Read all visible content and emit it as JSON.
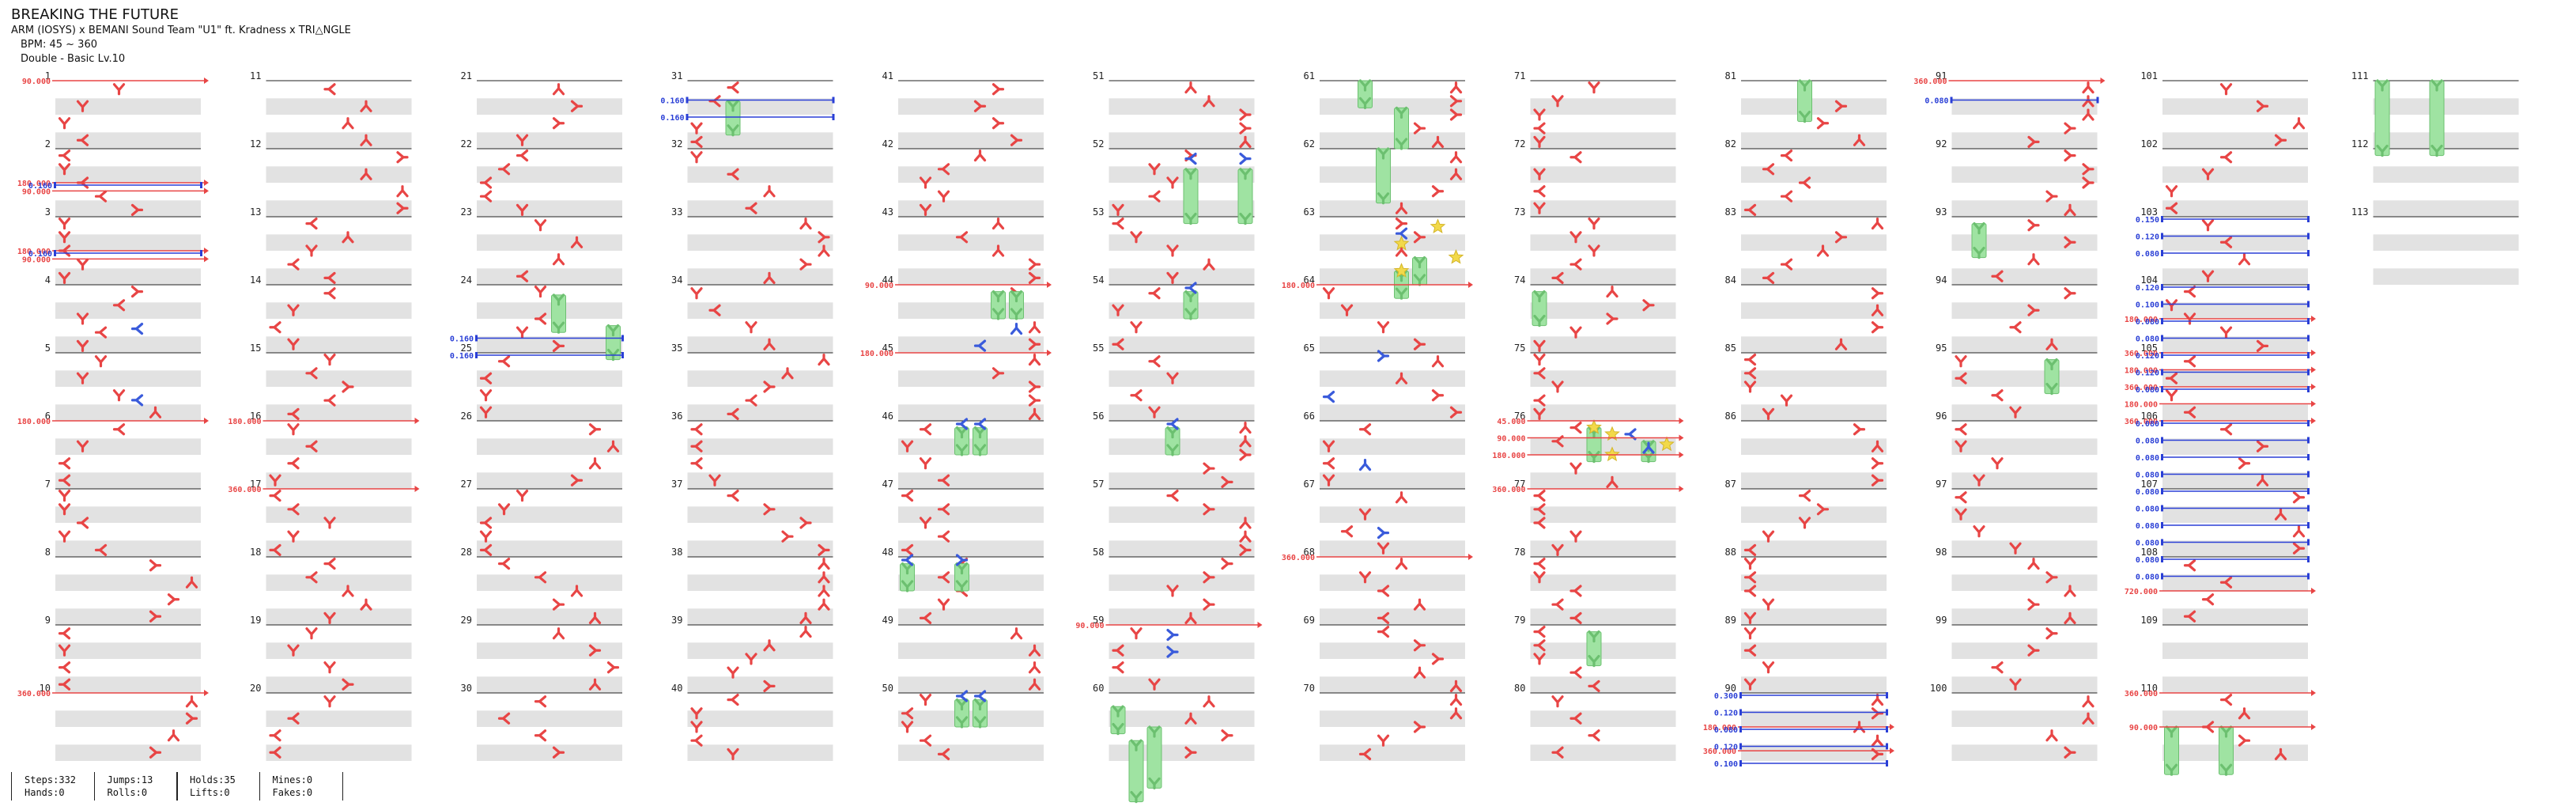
{
  "song": {
    "title": "BREAKING THE FUTURE",
    "artist": "ARM (IOSYS) x BEMANI Sound Team \"U1\" ft. Kradness x TRI△NGLE",
    "bpm_text": "BPM: 45 ~ 360",
    "difficulty_text": "Double - Basic Lv.10"
  },
  "stats": [
    {
      "lines": [
        "Steps:332",
        "Hands:0"
      ]
    },
    {
      "lines": [
        "Jumps:13",
        "Rolls:0"
      ]
    },
    {
      "lines": [
        "Holds:35",
        "Lifts:0"
      ]
    },
    {
      "lines": [
        "Mines:0",
        "Fakes:0"
      ]
    }
  ],
  "colors": {
    "tap": "#e84545",
    "blue_arrow": "#3a5bdb",
    "hold": "#9fe3a2",
    "star": "#f2d94a",
    "bpm_line": "#e84545",
    "stop_line": "#2a3fd6",
    "measure_line": "#222222",
    "band": "#e2e2e2"
  },
  "bpm_changes": [
    {
      "measure": 1,
      "pos": 0,
      "label": "90.000"
    },
    {
      "measure": 2,
      "pos": 0.5,
      "label": "180.000"
    },
    {
      "measure": 2,
      "pos": 0.62,
      "label": "90.000"
    },
    {
      "measure": 3,
      "pos": 0.5,
      "label": "180.000"
    },
    {
      "measure": 3,
      "pos": 0.62,
      "label": "90.000"
    },
    {
      "measure": 6,
      "pos": 0,
      "label": "180.000"
    },
    {
      "measure": 10,
      "pos": 0,
      "label": "360.000"
    },
    {
      "measure": 16,
      "pos": 0,
      "label": "180.000"
    },
    {
      "measure": 17,
      "pos": 0,
      "label": "360.000"
    },
    {
      "measure": 44,
      "pos": 0,
      "label": "90.000"
    },
    {
      "measure": 45,
      "pos": 0,
      "label": "180.000"
    },
    {
      "measure": 59,
      "pos": 0,
      "label": "90.000"
    },
    {
      "measure": 64,
      "pos": 0,
      "label": "180.000"
    },
    {
      "measure": 68,
      "pos": 0,
      "label": "360.000"
    },
    {
      "measure": 76,
      "pos": 0,
      "label": "45.000"
    },
    {
      "measure": 76,
      "pos": 0.25,
      "label": "90.000"
    },
    {
      "measure": 76,
      "pos": 0.5,
      "label": "180.000"
    },
    {
      "measure": 77,
      "pos": 0,
      "label": "360.000"
    },
    {
      "measure": 90,
      "pos": 0.5,
      "label": "180.000"
    },
    {
      "measure": 90,
      "pos": 0.85,
      "label": "360.000"
    },
    {
      "measure": 91,
      "pos": 0,
      "label": "360.000"
    },
    {
      "measure": 104,
      "pos": 0.5,
      "label": "180.000"
    },
    {
      "measure": 105,
      "pos": 0,
      "label": "360.000"
    },
    {
      "measure": 105,
      "pos": 0.25,
      "label": "180.000"
    },
    {
      "measure": 105,
      "pos": 0.5,
      "label": "360.000"
    },
    {
      "measure": 105,
      "pos": 0.75,
      "label": "180.000"
    },
    {
      "measure": 106,
      "pos": 0,
      "label": "360.000"
    },
    {
      "measure": 108,
      "pos": 0.5,
      "label": "720.000"
    },
    {
      "measure": 110,
      "pos": 0,
      "label": "360.000"
    },
    {
      "measure": 110,
      "pos": 0.5,
      "label": "90.000"
    }
  ],
  "stops": [
    {
      "measure": 2,
      "pos": 0.5,
      "label": "0.160"
    },
    {
      "measure": 3,
      "pos": 0.5,
      "label": "0.160"
    },
    {
      "measure": 24,
      "pos": 0.75,
      "label": "0.160"
    },
    {
      "measure": 24,
      "pos": 1.0,
      "label": "0.160"
    },
    {
      "measure": 31,
      "pos": 0.25,
      "label": "0.160"
    },
    {
      "measure": 31,
      "pos": 0.5,
      "label": "0.160"
    },
    {
      "measure": 89,
      "pos": 1.0,
      "label": "0.300"
    },
    {
      "measure": 90,
      "pos": 0.25,
      "label": "0.120"
    },
    {
      "measure": 90,
      "pos": 0.5,
      "label": "0.080"
    },
    {
      "measure": 90,
      "pos": 0.75,
      "label": "0.120"
    },
    {
      "measure": 90,
      "pos": 1.0,
      "label": "0.100"
    },
    {
      "measure": 91,
      "pos": 0.25,
      "label": "0.080"
    },
    {
      "measure": 103,
      "pos": 0,
      "label": "0.150"
    },
    {
      "measure": 103,
      "pos": 0.25,
      "label": "0.120"
    },
    {
      "measure": 103,
      "pos": 0.5,
      "label": "0.080"
    },
    {
      "measure": 104,
      "pos": 0,
      "label": "0.120"
    },
    {
      "measure": 104,
      "pos": 0.25,
      "label": "0.100"
    },
    {
      "measure": 104,
      "pos": 0.5,
      "label": "0.080"
    },
    {
      "measure": 104,
      "pos": 0.75,
      "label": "0.080"
    },
    {
      "measure": 105,
      "pos": 0,
      "label": "0.120"
    },
    {
      "measure": 105,
      "pos": 0.25,
      "label": "0.120"
    },
    {
      "measure": 105,
      "pos": 0.5,
      "label": "0.080"
    },
    {
      "measure": 106,
      "pos": 0,
      "label": "0.080"
    },
    {
      "measure": 106,
      "pos": 0.25,
      "label": "0.080"
    },
    {
      "measure": 106,
      "pos": 0.5,
      "label": "0.080"
    },
    {
      "measure": 106,
      "pos": 0.75,
      "label": "0.080"
    },
    {
      "measure": 107,
      "pos": 0,
      "label": "0.080"
    },
    {
      "measure": 107,
      "pos": 0.25,
      "label": "0.080"
    },
    {
      "measure": 107,
      "pos": 0.5,
      "label": "0.080"
    },
    {
      "measure": 107,
      "pos": 0.75,
      "label": "0.080"
    },
    {
      "measure": 108,
      "pos": 0,
      "label": "0.080"
    },
    {
      "measure": 108,
      "pos": 0.25,
      "label": "0.080"
    }
  ],
  "holds": [
    {
      "measure": 24,
      "pos": 0.15,
      "len": 0.55,
      "lane": 4
    },
    {
      "measure": 24,
      "pos": 0.6,
      "len": 0.5,
      "lane": 7
    },
    {
      "measure": 31,
      "pos": 0.3,
      "len": 0.5,
      "lane": 2
    },
    {
      "measure": 44,
      "pos": 0.1,
      "len": 0.4,
      "lane": 5
    },
    {
      "measure": 44,
      "pos": 0.1,
      "len": 0.4,
      "lane": 6
    },
    {
      "measure": 46,
      "pos": 0.1,
      "len": 0.4,
      "lane": 3
    },
    {
      "measure": 46,
      "pos": 0.1,
      "len": 0.4,
      "lane": 4
    },
    {
      "measure": 48,
      "pos": 0.1,
      "len": 0.4,
      "lane": 0
    },
    {
      "measure": 48,
      "pos": 0.1,
      "len": 0.4,
      "lane": 3
    },
    {
      "measure": 50,
      "pos": 0.1,
      "len": 0.4,
      "lane": 3
    },
    {
      "measure": 50,
      "pos": 0.1,
      "len": 0.4,
      "lane": 4
    },
    {
      "measure": 52,
      "pos": 0.3,
      "len": 0.8,
      "lane": 4
    },
    {
      "measure": 52,
      "pos": 0.3,
      "len": 0.8,
      "lane": 7
    },
    {
      "measure": 54,
      "pos": 0.1,
      "len": 0.4,
      "lane": 4
    },
    {
      "measure": 56,
      "pos": 0.1,
      "len": 0.4,
      "lane": 3
    },
    {
      "measure": 60,
      "pos": 0.2,
      "len": 0.4,
      "lane": 0
    },
    {
      "measure": 60,
      "pos": 0.5,
      "len": 0.9,
      "lane": 2
    },
    {
      "measure": 60,
      "pos": 0.7,
      "len": 0.9,
      "lane": 1
    },
    {
      "measure": 61,
      "pos": 0,
      "len": 0.4,
      "lane": 2
    },
    {
      "measure": 61,
      "pos": 0.4,
      "len": 0.6,
      "lane": 4
    },
    {
      "measure": 62,
      "pos": 0,
      "len": 0.8,
      "lane": 3
    },
    {
      "measure": 63,
      "pos": 0.6,
      "len": 0.4,
      "lane": 5
    },
    {
      "measure": 63,
      "pos": 0.8,
      "len": 0.4,
      "lane": 4
    },
    {
      "measure": 74,
      "pos": 0.1,
      "len": 0.5,
      "lane": 0
    },
    {
      "measure": 76,
      "pos": 0.1,
      "len": 0.5,
      "lane": 3
    },
    {
      "measure": 76,
      "pos": 0.3,
      "len": 0.3,
      "lane": 6
    },
    {
      "measure": 79,
      "pos": 0.1,
      "len": 0.5,
      "lane": 3
    },
    {
      "measure": 81,
      "pos": 0,
      "len": 0.6,
      "lane": 3
    },
    {
      "measure": 93,
      "pos": 0.1,
      "len": 0.5,
      "lane": 1
    },
    {
      "measure": 95,
      "pos": 0.1,
      "len": 0.5,
      "lane": 5
    },
    {
      "measure": 110,
      "pos": 0.5,
      "len": 0.7,
      "lane": 0
    },
    {
      "measure": 110,
      "pos": 0.5,
      "len": 0.7,
      "lane": 3
    },
    {
      "measure": 111,
      "pos": 0,
      "len": 1.1,
      "lane": 0
    },
    {
      "measure": 111,
      "pos": 0,
      "len": 1.1,
      "lane": 3
    }
  ],
  "stars": [
    {
      "measure": 63,
      "pos": 0.1,
      "lane": 6
    },
    {
      "measure": 63,
      "pos": 0.35,
      "lane": 4
    },
    {
      "measure": 63,
      "pos": 0.55,
      "lane": 7
    },
    {
      "measure": 63,
      "pos": 0.75,
      "lane": 4
    },
    {
      "measure": 76,
      "pos": 0.05,
      "lane": 3
    },
    {
      "measure": 76,
      "pos": 0.15,
      "lane": 4
    },
    {
      "measure": 76,
      "pos": 0.3,
      "lane": 7
    },
    {
      "measure": 76,
      "pos": 0.45,
      "lane": 4
    }
  ],
  "blue_taps": [
    {
      "measure": 4,
      "pos": 0.6,
      "lane": 4,
      "dir": "L"
    },
    {
      "measure": 5,
      "pos": 0.65,
      "lane": 4,
      "dir": "L"
    },
    {
      "measure": 44,
      "pos": 0.6,
      "lane": 6,
      "dir": "U"
    },
    {
      "measure": 44,
      "pos": 0.85,
      "lane": 4,
      "dir": "L"
    },
    {
      "measure": 46,
      "pos": 0,
      "lane": 3,
      "dir": "L"
    },
    {
      "measure": 46,
      "pos": 0,
      "lane": 4,
      "dir": "L"
    },
    {
      "measure": 48,
      "pos": 0,
      "lane": 0,
      "dir": "L"
    },
    {
      "measure": 48,
      "pos": 0,
      "lane": 3,
      "dir": "R"
    },
    {
      "measure": 50,
      "pos": 0,
      "lane": 3,
      "dir": "L"
    },
    {
      "measure": 50,
      "pos": 0,
      "lane": 4,
      "dir": "L"
    },
    {
      "measure": 52,
      "pos": 0.1,
      "lane": 4,
      "dir": "L"
    },
    {
      "measure": 52,
      "pos": 0.1,
      "lane": 7,
      "dir": "R"
    },
    {
      "measure": 54,
      "pos": 0,
      "lane": 4,
      "dir": "L"
    },
    {
      "measure": 56,
      "pos": 0,
      "lane": 3,
      "dir": "L"
    },
    {
      "measure": 59,
      "pos": 0.1,
      "lane": 3,
      "dir": "R"
    },
    {
      "measure": 59,
      "pos": 0.35,
      "lane": 3,
      "dir": "R"
    },
    {
      "measure": 63,
      "pos": 0.2,
      "lane": 4,
      "dir": "L"
    },
    {
      "measure": 65,
      "pos": 0.6,
      "lane": 0,
      "dir": "L"
    },
    {
      "measure": 65,
      "pos": 0,
      "lane": 3,
      "dir": "R"
    },
    {
      "measure": 66,
      "pos": 0.6,
      "lane": 2,
      "dir": "U"
    },
    {
      "measure": 67,
      "pos": 0.6,
      "lane": 3,
      "dir": "R"
    },
    {
      "measure": 76,
      "pos": 0.15,
      "lane": 5,
      "dir": "L"
    },
    {
      "measure": 76,
      "pos": 0.35,
      "lane": 6,
      "dir": "U"
    }
  ],
  "measure_numbers": [
    "1",
    "2",
    "3",
    "4",
    "5",
    "6",
    "7",
    "8",
    "9",
    "10",
    "11",
    "12",
    "13",
    "14",
    "15",
    "16",
    "17",
    "18",
    "19",
    "20",
    "21",
    "22",
    "23",
    "24",
    "25",
    "26",
    "27",
    "28",
    "29",
    "30",
    "31",
    "32",
    "33",
    "34",
    "35",
    "36",
    "37",
    "38",
    "39",
    "40",
    "41",
    "42",
    "43",
    "44",
    "45",
    "46",
    "47",
    "48",
    "49",
    "50",
    "51",
    "52",
    "53",
    "54",
    "55",
    "56",
    "57",
    "58",
    "59",
    "60",
    "61",
    "62",
    "63",
    "64",
    "65",
    "66",
    "67",
    "68",
    "69",
    "70",
    "71",
    "72",
    "73",
    "74",
    "75",
    "76",
    "77",
    "78",
    "79",
    "80",
    "81",
    "82",
    "83",
    "84",
    "85",
    "86",
    "87",
    "88",
    "89",
    "90",
    "91",
    "92",
    "93",
    "94",
    "95",
    "96",
    "97",
    "98",
    "99",
    "100",
    "101",
    "102",
    "103",
    "104",
    "105",
    "106",
    "107",
    "108",
    "109",
    "110",
    "111",
    "112",
    "113"
  ]
}
